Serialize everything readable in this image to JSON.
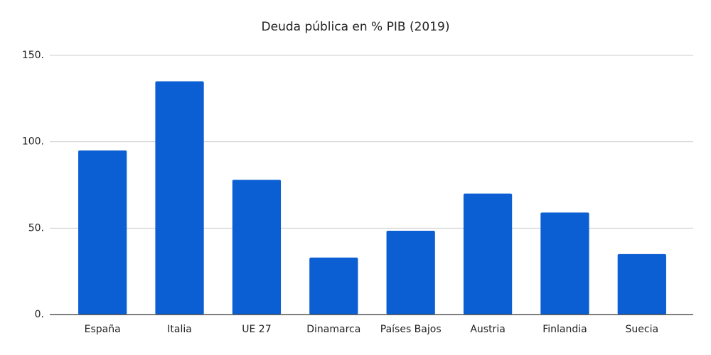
{
  "chart_data": {
    "type": "bar",
    "title": "Deuda pública en % PIB (2019)",
    "categories": [
      "España",
      "Italia",
      "UE 27",
      "Dinamarca",
      "Países Bajos",
      "Austria",
      "Finlandia",
      "Suecia"
    ],
    "values": [
      95,
      135,
      78,
      33,
      48.5,
      70,
      59,
      35
    ],
    "color": "#0b5fd2",
    "ylim": [
      0,
      150
    ],
    "yticks": [
      {
        "value": 0,
        "label": "0."
      },
      {
        "value": 50,
        "label": "50."
      },
      {
        "value": 100,
        "label": "100."
      },
      {
        "value": 150,
        "label": "150."
      }
    ],
    "grid": true
  }
}
